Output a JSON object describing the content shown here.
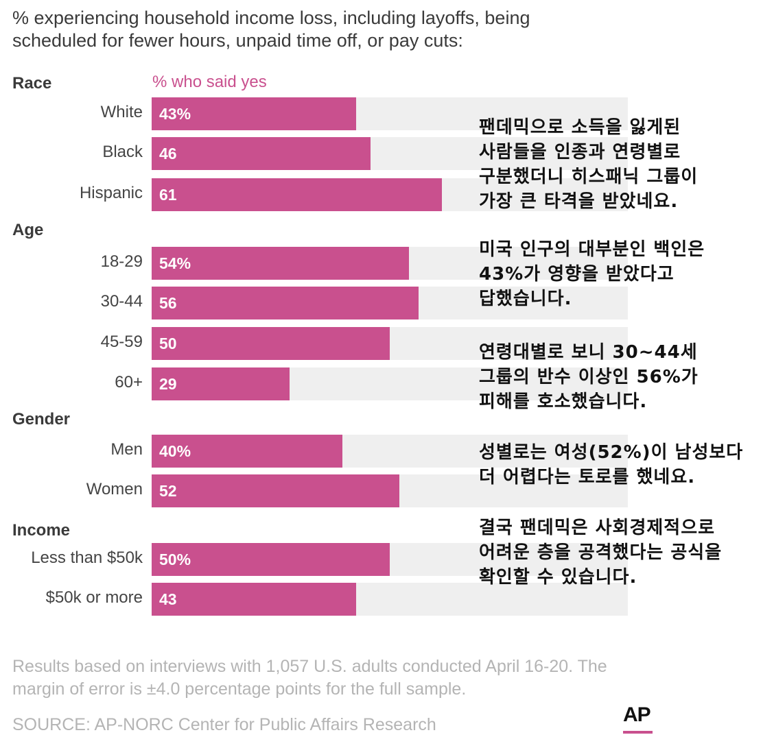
{
  "title": "% experiencing household income loss, including layoffs, being scheduled for fewer hours, unpaid time off, or pay cuts:",
  "column_header": "% who said yes",
  "chart_data": {
    "type": "bar",
    "orientation": "horizontal",
    "title": "% experiencing household income loss, including layoffs, being scheduled for fewer hours, unpaid time off, or pay cuts:",
    "xlim": [
      0,
      100
    ],
    "groups": [
      {
        "name": "Race",
        "categories": [
          "White",
          "Black",
          "Hispanic"
        ],
        "values": [
          43,
          46,
          61
        ],
        "value_labels": [
          "43%",
          "46",
          "61"
        ]
      },
      {
        "name": "Age",
        "categories": [
          "18-29",
          "30-44",
          "45-59",
          "60+"
        ],
        "values": [
          54,
          56,
          50,
          29
        ],
        "value_labels": [
          "54%",
          "56",
          "50",
          "29"
        ]
      },
      {
        "name": "Gender",
        "categories": [
          "Men",
          "Women"
        ],
        "values": [
          40,
          52
        ],
        "value_labels": [
          "40%",
          "52"
        ]
      },
      {
        "name": "Income",
        "categories": [
          "Less than $50k",
          "$50k or more"
        ],
        "values": [
          50,
          43
        ],
        "value_labels": [
          "50%",
          "43"
        ]
      }
    ]
  },
  "notes": [
    [
      "팬데믹으로 소득을 잃게된",
      "사람들을 인종과 연령별로",
      "구분했더니 히스패닉 그룹이",
      "가장 큰 타격을 받았네요."
    ],
    [
      "미국 인구의 대부분인 백인은",
      "43%가 영향을 받았다고",
      "답했습니다."
    ],
    [
      "연령대별로 보니 30~44세",
      "그룹의 반수 이상인 56%가",
      "피해를 호소했습니다."
    ],
    [
      "성별로는 여성(52%)이 남성보다",
      "더 어렵다는 토로를 했네요."
    ],
    [
      "결국 팬데믹은 사회경제적으로",
      "어려운 층을 공격했다는 공식을",
      "확인할 수 있습니다."
    ]
  ],
  "footnote": "Results based on interviews with 1,057 U.S. adults conducted April 16-20. The margin of error is ±4.0 percentage points for the full sample.",
  "source": "SOURCE: AP-NORC Center for Public Affairs Research",
  "logo": "AP",
  "colors": {
    "bar": "#c9508e",
    "track": "#efefef",
    "header": "#c9508e",
    "footnote": "#b4b4b4"
  }
}
